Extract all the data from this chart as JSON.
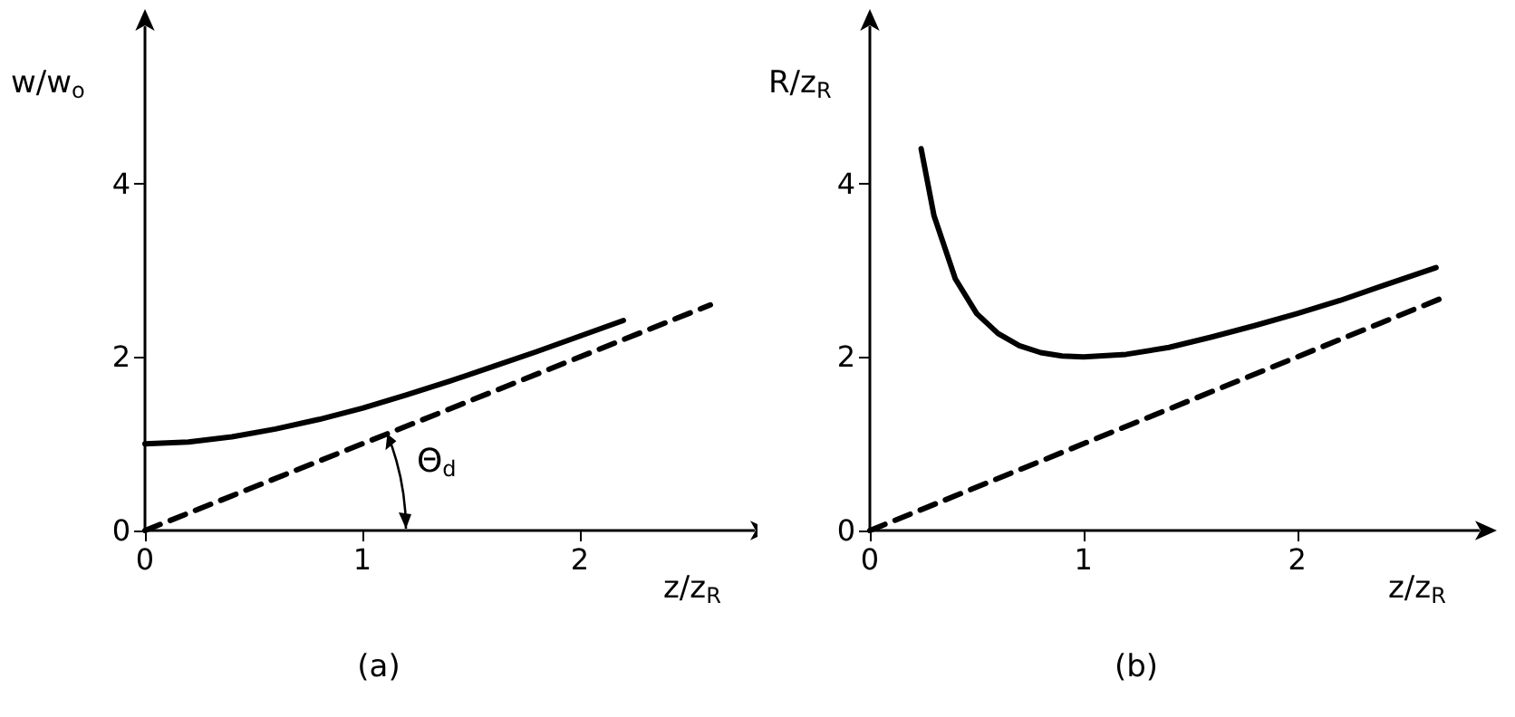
{
  "chart_data": [
    {
      "type": "line",
      "title": "(a)",
      "xlabel": "z/z$_{R}$",
      "ylabel": "w/w$_{o}$",
      "annotations": [
        "Θ$_{d}$"
      ],
      "xlim": [
        0,
        2.8
      ],
      "ylim": [
        0,
        5.8
      ],
      "xticks": [
        0,
        1,
        2
      ],
      "yticks": [
        0,
        2,
        4
      ],
      "grid": false,
      "marker": "none",
      "series": [
        {
          "color": "#000000",
          "line_style": "solid",
          "x": [
            0,
            0.2,
            0.4,
            0.6,
            0.8,
            1.0,
            1.2,
            1.4,
            1.6,
            1.8,
            2.0,
            2.2
          ],
          "values": [
            1.0,
            1.02,
            1.08,
            1.17,
            1.28,
            1.41,
            1.56,
            1.72,
            1.89,
            2.06,
            2.24,
            2.42
          ]
        },
        {
          "color": "#000000",
          "line_style": "dashed",
          "x": [
            0,
            2.6
          ],
          "values": [
            0,
            2.6
          ]
        }
      ]
    },
    {
      "type": "line",
      "title": "(b)",
      "xlabel": "z/z$_{R}$",
      "ylabel": "R/z$_{R}$",
      "xlim": [
        0,
        2.85
      ],
      "ylim": [
        0,
        5.8
      ],
      "xticks": [
        0,
        1,
        2
      ],
      "yticks": [
        0,
        2,
        4
      ],
      "grid": false,
      "marker": "none",
      "series": [
        {
          "color": "#000000",
          "line_style": "solid",
          "x": [
            0.24,
            0.3,
            0.4,
            0.5,
            0.6,
            0.7,
            0.8,
            0.9,
            1.0,
            1.2,
            1.4,
            1.6,
            1.8,
            2.0,
            2.2,
            2.4,
            2.65
          ],
          "values": [
            4.4,
            3.63,
            2.9,
            2.5,
            2.27,
            2.13,
            2.05,
            2.01,
            2.0,
            2.03,
            2.11,
            2.23,
            2.36,
            2.5,
            2.65,
            2.82,
            3.03
          ]
        },
        {
          "color": "#000000",
          "line_style": "dashed",
          "x": [
            0,
            2.7
          ],
          "values": [
            0,
            2.7
          ]
        }
      ]
    }
  ]
}
